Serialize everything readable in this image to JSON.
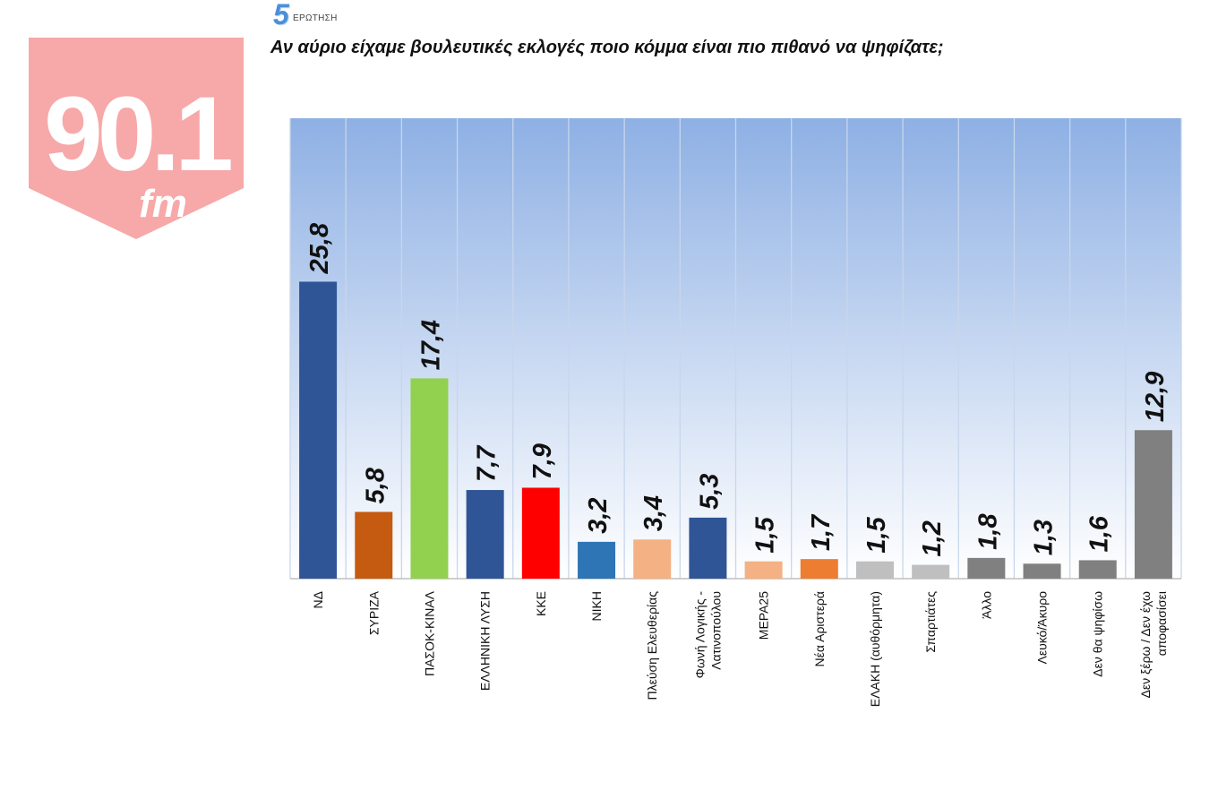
{
  "logo": {
    "text": "90.1",
    "sub": "fm",
    "color": "#f7a8a8"
  },
  "question": {
    "number": "5",
    "word": "ΕΡΩΤΗΣΗ",
    "text": "Αν αύριο είχαμε βουλευτικές εκλογές ποιο κόμμα είναι πιο πιθανό να ψηφίζατε;"
  },
  "chart_data": {
    "type": "bar",
    "title": "",
    "xlabel": "",
    "ylabel": "",
    "ylim": [
      0,
      40
    ],
    "grid": "vertical separators",
    "legend": "none",
    "categories": [
      [
        "ΝΔ"
      ],
      [
        "ΣΥΡΙΖΑ"
      ],
      [
        "ΠΑΣΟΚ-ΚΙΝΑΛ"
      ],
      [
        "ΕΛΛΗΝΙΚΗ ΛΥΣΗ"
      ],
      [
        "ΚΚΕ"
      ],
      [
        "ΝΙΚΗ"
      ],
      [
        "Πλεύση Ελευθερίας"
      ],
      [
        "Φωνή Λογικής -",
        "Λατινοπούλου"
      ],
      [
        "ΜΕΡΑ25"
      ],
      [
        "Νέα Αριστερά"
      ],
      [
        "ΕΛΑΚΗ  (αυθόρμητα)"
      ],
      [
        "Σπαρτιάτες"
      ],
      [
        "Άλλο"
      ],
      [
        "Λευκό/Άκυρο"
      ],
      [
        "Δεν θα ψηφίσω"
      ],
      [
        "Δεν ξέρω / Δεν έχω",
        "αποφασίσει"
      ]
    ],
    "values": [
      25.8,
      5.8,
      17.4,
      7.7,
      7.9,
      3.2,
      3.4,
      5.3,
      1.5,
      1.7,
      1.5,
      1.2,
      1.8,
      1.3,
      1.6,
      12.9
    ],
    "value_labels": [
      "25,8",
      "5,8",
      "17,4",
      "7,7",
      "7,9",
      "3,2",
      "3,4",
      "5,3",
      "1,5",
      "1,7",
      "1,5",
      "1,2",
      "1,8",
      "1,3",
      "1,6",
      "12,9"
    ],
    "colors": [
      "#2f5597",
      "#c55a11",
      "#92d050",
      "#2f5597",
      "#ff0000",
      "#2e75b6",
      "#f4b183",
      "#2f5597",
      "#f4b183",
      "#ed7d31",
      "#bfbfbf",
      "#bfbfbf",
      "#808080",
      "#808080",
      "#808080",
      "#808080"
    ],
    "background_gradient": [
      "#8eb0e4",
      "#ffffff"
    ],
    "separator_color": "#c8d6ec"
  }
}
